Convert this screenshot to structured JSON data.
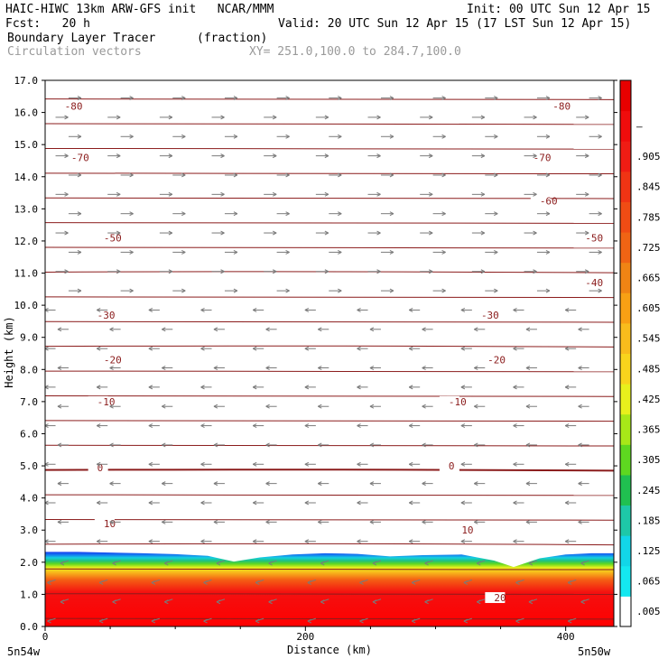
{
  "header": {
    "title_left": "HAIC-HIWC 13km ARW-GFS init   NCAR/MMM",
    "init": "Init: 00 UTC Sun 12 Apr 15",
    "fcst": "Fcst:   20 h",
    "valid": "Valid: 20 UTC Sun 12 Apr 15 (17 LST Sun 12 Apr 15)",
    "field_name": "Boundary Layer Tracer",
    "field_unit": "(fraction)",
    "vectors": "Circulation vectors",
    "xy_range": "XY= 251.0,100.0 to 284.7,100.0"
  },
  "chart_data": {
    "type": "heatmap",
    "xlabel": "Distance (km)",
    "ylabel": "Height (km)",
    "xlim": [
      0,
      437
    ],
    "ylim": [
      0,
      17
    ],
    "x_ticks": [
      0,
      200,
      400
    ],
    "y_ticks": [
      "0.0",
      "1.0",
      "2.0",
      "3.0",
      "4.0",
      "5.0",
      "6.0",
      "7.0",
      "8.0",
      "9.0",
      "10.0",
      "11.0",
      "12.0",
      "13.0",
      "14.0",
      "15.0",
      "16.0",
      "17.0"
    ],
    "x_endpoints": [
      "5n54w",
      "5n50w"
    ],
    "colorbar": {
      "labels": [
        ".005",
        ".065",
        ".125",
        ".185",
        ".245",
        ".305",
        ".365",
        ".425",
        ".485",
        ".545",
        ".605",
        ".665",
        ".725",
        ".785",
        ".845",
        ".905",
        "–"
      ],
      "colors": [
        "#ffffff",
        "#14e8f0",
        "#12d6e8",
        "#1ec8a8",
        "#20c050",
        "#5ed820",
        "#a8e818",
        "#e8f01c",
        "#f8d41c",
        "#f8bc1c",
        "#f8a014",
        "#f08414",
        "#f06414",
        "#f04c14",
        "#f03414",
        "#f01c14",
        "#f00c0c",
        "#e80000"
      ]
    },
    "tracer_top_km": [
      2.32,
      2.32,
      2.3,
      2.28,
      2.25,
      2.2,
      2.02,
      2.15,
      2.24,
      2.28,
      2.26,
      2.18,
      2.22,
      2.24,
      2.05,
      1.85,
      2.12,
      2.24,
      2.28,
      2.28
    ],
    "tracer_top_x_km": [
      0,
      25,
      50,
      75,
      100,
      125,
      145,
      165,
      190,
      215,
      240,
      265,
      290,
      320,
      345,
      360,
      380,
      400,
      420,
      437
    ],
    "temperature_contours": {
      "interval": 5,
      "labels": [
        {
          "text": "-80",
          "x": 15,
          "y": 16.2
        },
        {
          "text": "-80",
          "x": 390,
          "y": 16.2
        },
        {
          "text": "-70",
          "x": 20,
          "y": 14.6
        },
        {
          "text": "-70",
          "x": 375,
          "y": 14.6
        },
        {
          "text": "-60",
          "x": 380,
          "y": 13.25
        },
        {
          "text": "-50",
          "x": 45,
          "y": 12.1
        },
        {
          "text": "-50",
          "x": 415,
          "y": 12.1
        },
        {
          "text": "-40",
          "x": 415,
          "y": 10.7
        },
        {
          "text": "-30",
          "x": 40,
          "y": 9.7
        },
        {
          "text": "-30",
          "x": 335,
          "y": 9.7
        },
        {
          "text": "-20",
          "x": 45,
          "y": 8.3
        },
        {
          "text": "-20",
          "x": 340,
          "y": 8.3
        },
        {
          "text": "-10",
          "x": 40,
          "y": 7.0
        },
        {
          "text": "-10",
          "x": 310,
          "y": 7.0
        },
        {
          "text": "0",
          "x": 40,
          "y": 4.95
        },
        {
          "text": "0",
          "x": 310,
          "y": 5.0
        },
        {
          "text": "10",
          "x": 45,
          "y": 3.2
        },
        {
          "text": "10",
          "x": 320,
          "y": 3.0
        },
        {
          "text": "20",
          "x": 345,
          "y": 0.9
        }
      ]
    },
    "wind": "easterly arrows above boundary layer, westerly aloft (above ~10 km)"
  }
}
